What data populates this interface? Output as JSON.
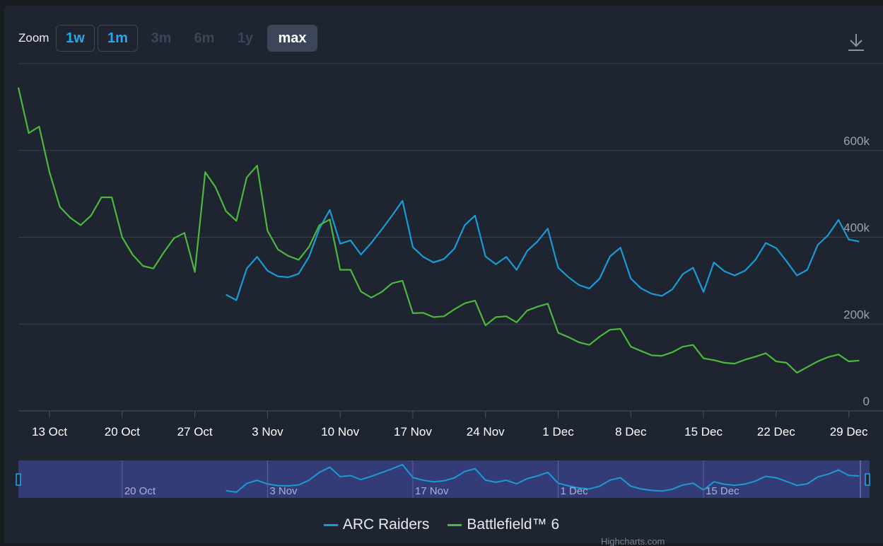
{
  "toolbar": {
    "zoom_label": "Zoom",
    "buttons": [
      {
        "label": "1w",
        "state": "active"
      },
      {
        "label": "1m",
        "state": "active"
      },
      {
        "label": "3m",
        "state": "disabled"
      },
      {
        "label": "6m",
        "state": "disabled"
      },
      {
        "label": "1y",
        "state": "disabled"
      },
      {
        "label": "max",
        "state": "selected"
      }
    ],
    "download_icon": "download-icon"
  },
  "colors": {
    "background": "#1e2430",
    "arc_raiders": "#1a9ad6",
    "battlefield": "#4cb83c",
    "accent": "#27a7ea",
    "navigator": "#343c78"
  },
  "chart_data": {
    "type": "line",
    "x_axis": {
      "type": "date",
      "range": [
        "2025-10-10",
        "2025-12-31"
      ],
      "tick_labels": [
        "13 Oct",
        "20 Oct",
        "27 Oct",
        "3 Nov",
        "10 Nov",
        "17 Nov",
        "24 Nov",
        "1 Dec",
        "8 Dec",
        "15 Dec",
        "22 Dec",
        "29 Dec"
      ],
      "tick_dates": [
        "2025-10-13",
        "2025-10-20",
        "2025-10-27",
        "2025-11-03",
        "2025-11-10",
        "2025-11-17",
        "2025-11-24",
        "2025-12-01",
        "2025-12-08",
        "2025-12-15",
        "2025-12-22",
        "2025-12-29"
      ]
    },
    "y_axis": {
      "range": [
        0,
        800000
      ],
      "tick_values": [
        0,
        200000,
        400000,
        600000
      ],
      "tick_labels": [
        "0",
        "200k",
        "400k",
        "600k"
      ],
      "grid": true,
      "position": "right"
    },
    "legend": "bottom-center",
    "series": [
      {
        "name": "ARC Raiders",
        "color": "#1a9ad6",
        "start_date": "2025-10-30",
        "values": [
          268000,
          255000,
          328000,
          355000,
          323000,
          310000,
          308000,
          316000,
          355000,
          420000,
          463000,
          385000,
          393000,
          360000,
          387000,
          418000,
          450000,
          484000,
          377000,
          355000,
          342000,
          350000,
          374000,
          428000,
          450000,
          356000,
          338000,
          355000,
          325000,
          368000,
          390000,
          420000,
          330000,
          308000,
          290000,
          282000,
          305000,
          356000,
          376000,
          305000,
          282000,
          270000,
          265000,
          280000,
          315000,
          330000,
          274000,
          342000,
          322000,
          312000,
          323000,
          348000,
          387000,
          375000,
          345000,
          312000,
          325000,
          382000,
          405000,
          440000,
          395000,
          390000
        ]
      },
      {
        "name": "Battlefield™ 6",
        "color": "#4cb83c",
        "start_date": "2025-10-10",
        "values": [
          745000,
          640000,
          655000,
          550000,
          470000,
          445000,
          428000,
          450000,
          492000,
          492000,
          400000,
          360000,
          334000,
          328000,
          365000,
          398000,
          410000,
          320000,
          550000,
          515000,
          460000,
          438000,
          538000,
          565000,
          415000,
          372000,
          357000,
          348000,
          378000,
          428000,
          441000,
          325000,
          325000,
          275000,
          261000,
          274000,
          294000,
          300000,
          225000,
          226000,
          216000,
          218000,
          234000,
          248000,
          254000,
          197000,
          216000,
          218000,
          204000,
          231000,
          240000,
          247000,
          180000,
          170000,
          158000,
          152000,
          171000,
          187000,
          189000,
          148000,
          138000,
          128000,
          127000,
          135000,
          148000,
          152000,
          121000,
          117000,
          111000,
          109000,
          118000,
          125000,
          133000,
          114000,
          111000,
          88000,
          101000,
          114000,
          124000,
          130000,
          114000,
          116000
        ]
      }
    ],
    "navigator": {
      "tick_labels": [
        "20 Oct",
        "3 Nov",
        "17 Nov",
        "1 Dec",
        "15 Dec"
      ]
    }
  },
  "credits": "Highcharts.com"
}
